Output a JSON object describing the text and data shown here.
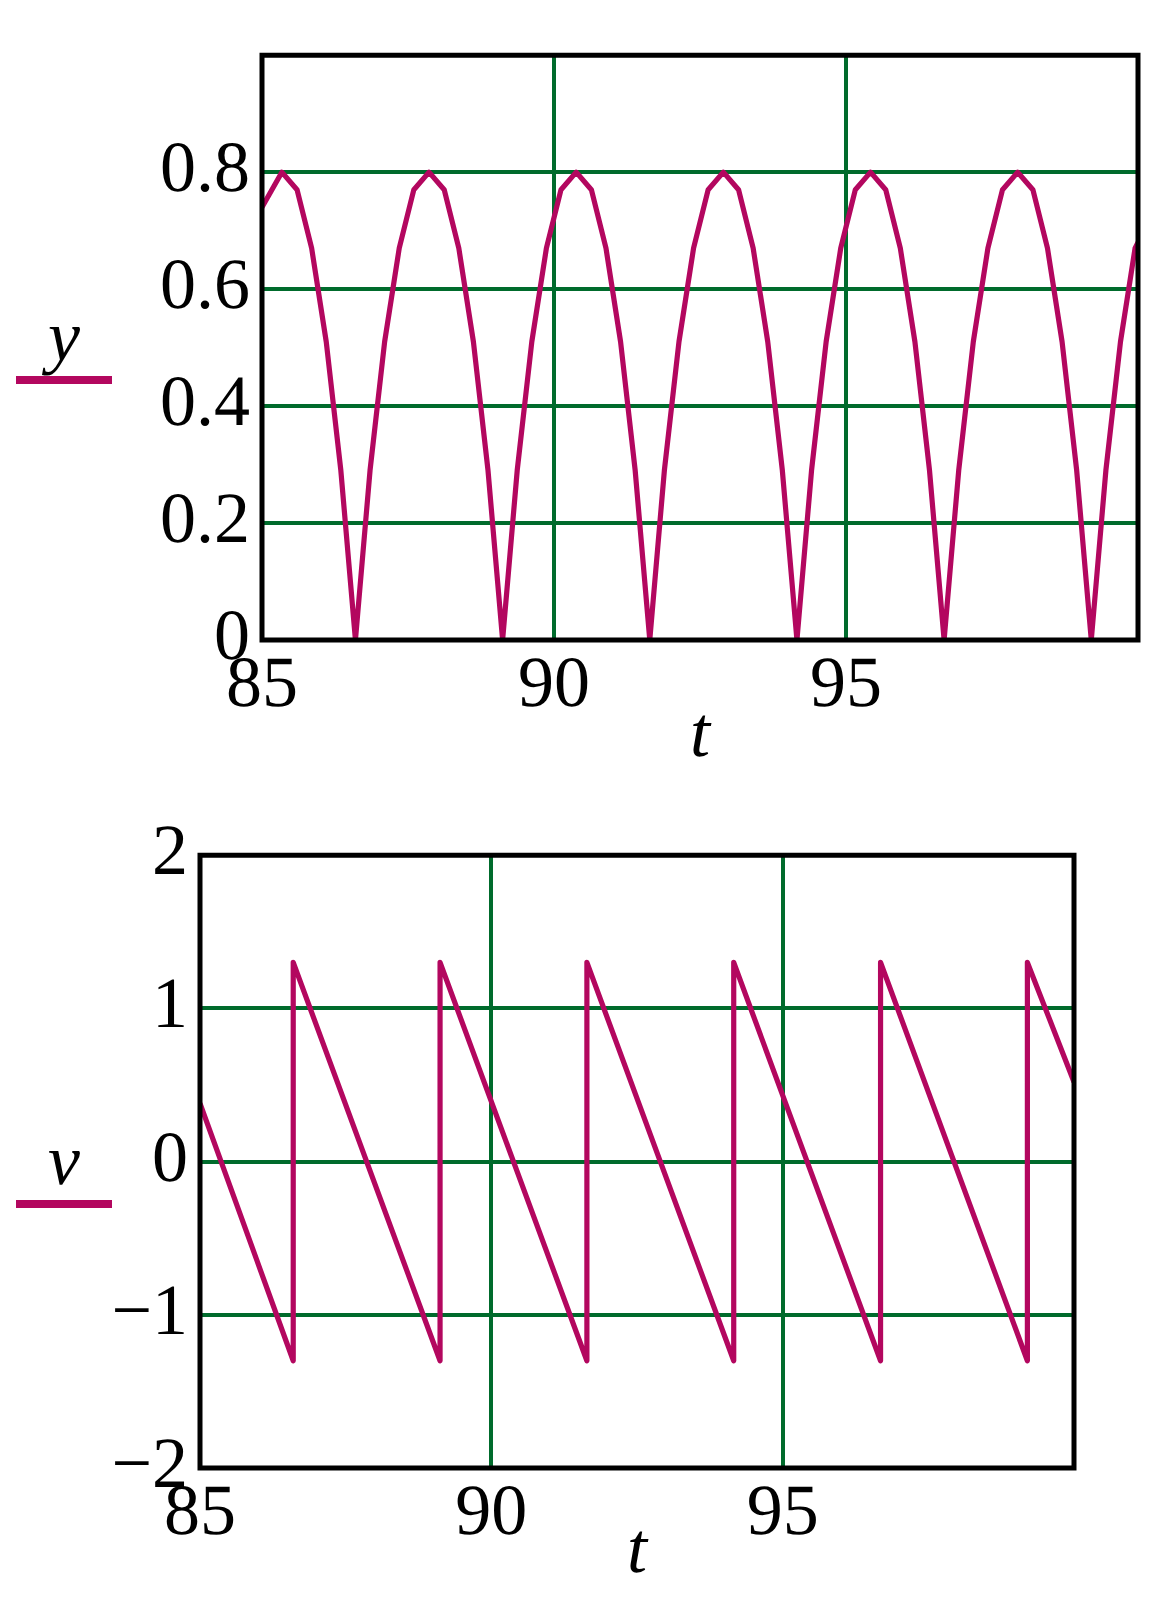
{
  "chart_data": [
    {
      "type": "line",
      "xlabel": "t",
      "ylabel": "y",
      "x": [
        85,
        85.34,
        85.6,
        85.85,
        86.1,
        86.35,
        86.6,
        86.85,
        87.1,
        87.35,
        87.6,
        87.86,
        88.12,
        88.37,
        88.62,
        88.87,
        89.12,
        89.37,
        89.62,
        89.87,
        90.12,
        90.38,
        90.64,
        90.89,
        91.14,
        91.39,
        91.64,
        91.89,
        92.14,
        92.39,
        92.64,
        92.9,
        93.16,
        93.41,
        93.66,
        93.91,
        94.16,
        94.41,
        94.66,
        94.91,
        95.16,
        95.42,
        95.68,
        95.93,
        96.18,
        96.43,
        96.68,
        96.93,
        97.18,
        97.43,
        97.68,
        97.94,
        98.2,
        98.45,
        98.7,
        98.95,
        99.2,
        99.45,
        99.7,
        99.95,
        100
      ],
      "series": [
        {
          "color": "#b3075f",
          "values": [
            0.74,
            0.8,
            0.77,
            0.67,
            0.51,
            0.29,
            0,
            0.29,
            0.51,
            0.67,
            0.77,
            0.8,
            0.77,
            0.67,
            0.51,
            0.29,
            0,
            0.29,
            0.51,
            0.67,
            0.77,
            0.8,
            0.77,
            0.67,
            0.51,
            0.29,
            0,
            0.29,
            0.51,
            0.67,
            0.77,
            0.8,
            0.77,
            0.67,
            0.51,
            0.29,
            0,
            0.29,
            0.51,
            0.67,
            0.77,
            0.8,
            0.77,
            0.67,
            0.51,
            0.29,
            0,
            0.29,
            0.51,
            0.67,
            0.77,
            0.8,
            0.77,
            0.67,
            0.51,
            0.29,
            0,
            0.29,
            0.51,
            0.67,
            0.68
          ]
        }
      ],
      "xlim": [
        85,
        100
      ],
      "xticks": [
        85,
        90,
        95
      ],
      "ylim": [
        0,
        1
      ],
      "yticks": [
        0,
        0.2,
        0.4,
        0.6,
        0.8
      ],
      "grid": true,
      "marker": "none",
      "line_style": "solid"
    },
    {
      "type": "line",
      "xlabel": "t",
      "ylabel": "v",
      "x": [
        85,
        86.6,
        86.6,
        89.12,
        89.12,
        91.64,
        91.64,
        94.16,
        94.16,
        96.68,
        96.68,
        99.2,
        99.2,
        100
      ],
      "series": [
        {
          "color": "#b3075f",
          "values": [
            0.38,
            -1.3,
            1.3,
            -1.3,
            1.3,
            -1.3,
            1.3,
            -1.3,
            1.3,
            -1.3,
            1.3,
            -1.3,
            1.3,
            0.52
          ]
        }
      ],
      "xlim": [
        85,
        100
      ],
      "xticks": [
        85,
        90,
        95
      ],
      "ylim": [
        -2,
        2
      ],
      "yticks": [
        {
          "value": -2,
          "label": "−2"
        },
        {
          "value": -1,
          "label": "−1"
        },
        0,
        1,
        2
      ],
      "grid": true,
      "marker": "none",
      "line_style": "solid"
    }
  ]
}
